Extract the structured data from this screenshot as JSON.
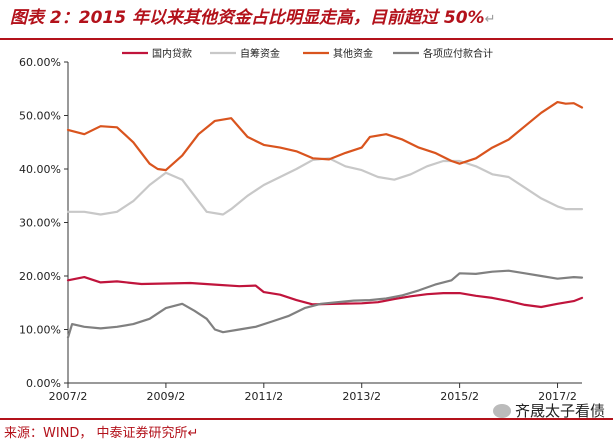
{
  "title": {
    "text": "图表 2：2015 年以来其他资金占比明显走高，目前超过 50%",
    "mark": "↵"
  },
  "source": "来源：WIND， 中泰证券研究所↵",
  "watermark": "齐晟太子看债",
  "colors": {
    "brand": "#b3121b",
    "series": [
      "#c0143c",
      "#c8c8c8",
      "#d9541e",
      "#808080"
    ]
  },
  "chart_data": {
    "type": "line",
    "x_ticks": [
      "2007/2",
      "2009/2",
      "2011/2",
      "2013/2",
      "2015/2",
      "2017/2"
    ],
    "x_tick_index": [
      0,
      24,
      48,
      72,
      96,
      120
    ],
    "x_points": 127,
    "y_ticks": [
      "0.00%",
      "10.00%",
      "20.00%",
      "30.00%",
      "40.00%",
      "50.00%",
      "60.00%"
    ],
    "ylim": [
      0,
      60
    ],
    "grid": false,
    "legend_position": "top",
    "series": [
      {
        "name": "国内贷款",
        "values": [
          [
            0,
            19.2
          ],
          [
            4,
            19.8
          ],
          [
            8,
            18.8
          ],
          [
            12,
            19.0
          ],
          [
            18,
            18.5
          ],
          [
            24,
            18.6
          ],
          [
            30,
            18.7
          ],
          [
            36,
            18.4
          ],
          [
            42,
            18.1
          ],
          [
            46,
            18.2
          ],
          [
            48,
            17.0
          ],
          [
            52,
            16.5
          ],
          [
            56,
            15.5
          ],
          [
            60,
            14.7
          ],
          [
            66,
            14.8
          ],
          [
            72,
            14.9
          ],
          [
            76,
            15.1
          ],
          [
            80,
            15.7
          ],
          [
            84,
            16.2
          ],
          [
            88,
            16.6
          ],
          [
            92,
            16.8
          ],
          [
            96,
            16.8
          ],
          [
            100,
            16.3
          ],
          [
            104,
            15.9
          ],
          [
            108,
            15.3
          ],
          [
            112,
            14.6
          ],
          [
            116,
            14.2
          ],
          [
            120,
            14.8
          ],
          [
            124,
            15.3
          ],
          [
            126,
            15.9
          ]
        ]
      },
      {
        "name": "自筹资金",
        "values": [
          [
            0,
            32.0
          ],
          [
            4,
            32.0
          ],
          [
            8,
            31.5
          ],
          [
            12,
            32.0
          ],
          [
            16,
            34.0
          ],
          [
            20,
            37.0
          ],
          [
            24,
            39.3
          ],
          [
            28,
            38.0
          ],
          [
            32,
            34.0
          ],
          [
            34,
            32.0
          ],
          [
            38,
            31.5
          ],
          [
            40,
            32.5
          ],
          [
            44,
            35.0
          ],
          [
            48,
            37.0
          ],
          [
            52,
            38.5
          ],
          [
            56,
            40.0
          ],
          [
            60,
            41.7
          ],
          [
            64,
            42.0
          ],
          [
            68,
            40.5
          ],
          [
            72,
            39.8
          ],
          [
            76,
            38.5
          ],
          [
            80,
            38.0
          ],
          [
            84,
            39.0
          ],
          [
            88,
            40.5
          ],
          [
            92,
            41.5
          ],
          [
            96,
            41.5
          ],
          [
            100,
            40.5
          ],
          [
            104,
            39.0
          ],
          [
            108,
            38.5
          ],
          [
            112,
            36.5
          ],
          [
            116,
            34.5
          ],
          [
            120,
            33.0
          ],
          [
            122,
            32.5
          ],
          [
            126,
            32.5
          ]
        ]
      },
      {
        "name": "其他资金",
        "values": [
          [
            0,
            47.3
          ],
          [
            4,
            46.5
          ],
          [
            8,
            48.0
          ],
          [
            12,
            47.8
          ],
          [
            16,
            45.0
          ],
          [
            20,
            41.0
          ],
          [
            22,
            40.0
          ],
          [
            24,
            39.8
          ],
          [
            28,
            42.5
          ],
          [
            32,
            46.5
          ],
          [
            36,
            49.0
          ],
          [
            40,
            49.5
          ],
          [
            44,
            46.0
          ],
          [
            48,
            44.5
          ],
          [
            52,
            44.0
          ],
          [
            56,
            43.3
          ],
          [
            60,
            42.0
          ],
          [
            64,
            41.8
          ],
          [
            68,
            43.0
          ],
          [
            72,
            44.0
          ],
          [
            74,
            46.0
          ],
          [
            78,
            46.5
          ],
          [
            82,
            45.5
          ],
          [
            86,
            44.0
          ],
          [
            90,
            43.0
          ],
          [
            94,
            41.5
          ],
          [
            96,
            41.0
          ],
          [
            100,
            42.0
          ],
          [
            104,
            44.0
          ],
          [
            108,
            45.5
          ],
          [
            112,
            48.0
          ],
          [
            116,
            50.5
          ],
          [
            120,
            52.5
          ],
          [
            122,
            52.2
          ],
          [
            124,
            52.3
          ],
          [
            126,
            51.5
          ]
        ]
      },
      {
        "name": "各项应付款合计",
        "values": [
          [
            0,
            8.5
          ],
          [
            1,
            11.0
          ],
          [
            4,
            10.5
          ],
          [
            8,
            10.2
          ],
          [
            12,
            10.5
          ],
          [
            16,
            11.0
          ],
          [
            20,
            12.0
          ],
          [
            24,
            14.0
          ],
          [
            28,
            14.8
          ],
          [
            31,
            13.5
          ],
          [
            34,
            12.0
          ],
          [
            36,
            10.0
          ],
          [
            38,
            9.5
          ],
          [
            42,
            10.0
          ],
          [
            46,
            10.5
          ],
          [
            50,
            11.5
          ],
          [
            54,
            12.5
          ],
          [
            58,
            14.0
          ],
          [
            62,
            14.8
          ],
          [
            66,
            15.1
          ],
          [
            70,
            15.4
          ],
          [
            74,
            15.5
          ],
          [
            78,
            15.8
          ],
          [
            82,
            16.4
          ],
          [
            86,
            17.3
          ],
          [
            90,
            18.4
          ],
          [
            94,
            19.2
          ],
          [
            96,
            20.5
          ],
          [
            100,
            20.4
          ],
          [
            104,
            20.8
          ],
          [
            108,
            21.0
          ],
          [
            112,
            20.5
          ],
          [
            116,
            20.0
          ],
          [
            120,
            19.5
          ],
          [
            124,
            19.8
          ],
          [
            126,
            19.7
          ]
        ]
      }
    ]
  }
}
